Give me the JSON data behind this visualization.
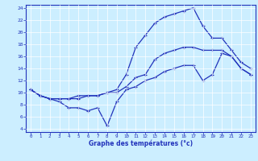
{
  "xlabel": "Graphe des températures (°c)",
  "bg_color": "#cceeff",
  "line_color": "#2233bb",
  "xlim": [
    -0.5,
    23.5
  ],
  "ylim": [
    3.5,
    24.5
  ],
  "xticks": [
    0,
    1,
    2,
    3,
    4,
    5,
    6,
    7,
    8,
    9,
    10,
    11,
    12,
    13,
    14,
    15,
    16,
    17,
    18,
    19,
    20,
    21,
    22,
    23
  ],
  "yticks": [
    4,
    6,
    8,
    10,
    12,
    14,
    16,
    18,
    20,
    22,
    24
  ],
  "line1_x": [
    0,
    1,
    2,
    3,
    4,
    5,
    6,
    7,
    8,
    9,
    10,
    11,
    12,
    13,
    14,
    15,
    16,
    17,
    18,
    19,
    20,
    21,
    22,
    23
  ],
  "line1_y": [
    10.5,
    9.5,
    9.0,
    8.5,
    7.5,
    7.5,
    7.0,
    7.5,
    4.5,
    8.5,
    10.5,
    11.0,
    12.0,
    12.5,
    13.5,
    14.0,
    14.5,
    14.5,
    12.0,
    13.0,
    16.5,
    16.0,
    14.0,
    13.0
  ],
  "line2_x": [
    0,
    1,
    2,
    3,
    4,
    5,
    6,
    7,
    8,
    9,
    10,
    11,
    12,
    13,
    14,
    15,
    16,
    17,
    18,
    19,
    20,
    21,
    22,
    23
  ],
  "line2_y": [
    10.5,
    9.5,
    9.0,
    9.0,
    9.0,
    9.0,
    9.5,
    9.5,
    10.0,
    10.0,
    11.0,
    12.5,
    13.0,
    15.5,
    16.5,
    17.0,
    17.5,
    17.5,
    17.0,
    17.0,
    17.0,
    16.0,
    14.0,
    13.0
  ],
  "line3_x": [
    0,
    1,
    2,
    3,
    4,
    5,
    6,
    7,
    8,
    9,
    10,
    11,
    12,
    13,
    14,
    15,
    16,
    17,
    18,
    19,
    20,
    21,
    22,
    23
  ],
  "line3_y": [
    10.5,
    9.5,
    9.0,
    9.0,
    9.0,
    9.5,
    9.5,
    9.5,
    10.0,
    10.5,
    13.0,
    17.5,
    19.5,
    21.5,
    22.5,
    23.0,
    23.5,
    24.0,
    21.0,
    19.0,
    19.0,
    17.0,
    15.0,
    14.0
  ]
}
